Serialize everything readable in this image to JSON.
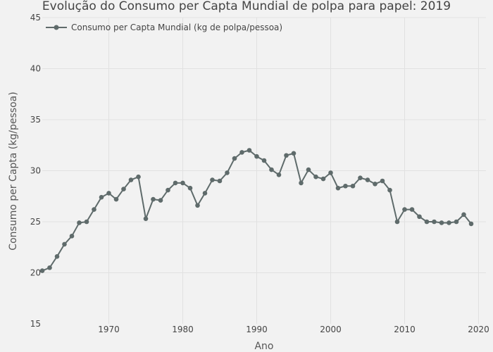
{
  "chart_data": {
    "type": "line",
    "title": "Evolução do Consumo per Capta Mundial de polpa para papel: 2019",
    "xlabel": "Ano",
    "ylabel": "Consumo per Capta (kg/pessoa)",
    "xlim": [
      1961,
      2021
    ],
    "ylim": [
      15,
      45
    ],
    "x_ticks": [
      1970,
      1980,
      1990,
      2000,
      2010,
      2020
    ],
    "y_ticks": [
      15,
      20,
      25,
      30,
      35,
      40,
      45
    ],
    "grid": true,
    "legend_position": "top-left",
    "series": [
      {
        "name": "Consumo per Capta Mundial (kg de polpa/pessoa)",
        "color": "#5f6b6b",
        "x": [
          1961,
          1962,
          1963,
          1964,
          1965,
          1966,
          1967,
          1968,
          1969,
          1970,
          1971,
          1972,
          1973,
          1974,
          1975,
          1976,
          1977,
          1978,
          1979,
          1980,
          1981,
          1982,
          1983,
          1984,
          1985,
          1986,
          1987,
          1988,
          1989,
          1990,
          1991,
          1992,
          1993,
          1994,
          1995,
          1996,
          1997,
          1998,
          1999,
          2000,
          2001,
          2002,
          2003,
          2004,
          2005,
          2006,
          2007,
          2008,
          2009,
          2010,
          2011,
          2012,
          2013,
          2014,
          2015,
          2016,
          2017,
          2018,
          2019
        ],
        "y": [
          20.2,
          20.5,
          21.6,
          22.8,
          23.6,
          24.9,
          25.0,
          26.2,
          27.4,
          27.8,
          27.2,
          28.2,
          29.1,
          29.4,
          25.3,
          27.2,
          27.1,
          28.1,
          28.8,
          28.8,
          28.3,
          26.6,
          27.8,
          29.1,
          29.0,
          29.8,
          31.2,
          31.8,
          32.0,
          31.4,
          31.0,
          30.1,
          29.6,
          31.5,
          31.7,
          28.8,
          30.1,
          29.4,
          29.2,
          29.8,
          28.3,
          28.5,
          28.5,
          29.3,
          29.1,
          28.7,
          29.0,
          28.1,
          25.0,
          26.2,
          26.2,
          25.5,
          25.0,
          25.0,
          24.9,
          24.9,
          25.0,
          25.7,
          24.8
        ]
      }
    ]
  }
}
